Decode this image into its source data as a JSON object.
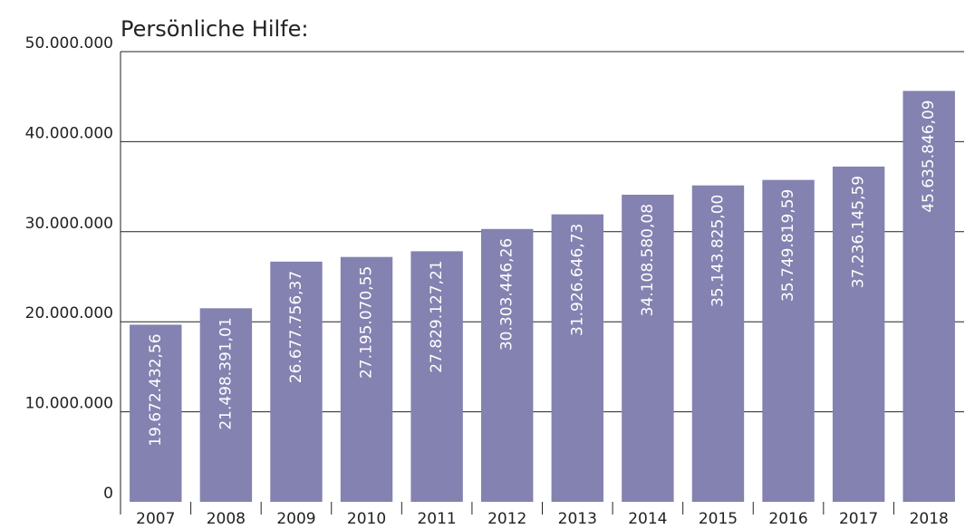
{
  "chart_data": {
    "type": "bar",
    "title": "Persönliche Hilfe:",
    "categories": [
      "2007",
      "2008",
      "2009",
      "2010",
      "2011",
      "2012",
      "2013",
      "2014",
      "2015",
      "2016",
      "2017",
      "2018"
    ],
    "values": [
      19672432.56,
      21498391.01,
      26677756.37,
      27195070.55,
      27829127.21,
      30303446.26,
      31926646.73,
      34108580.08,
      35143825.0,
      35749819.59,
      37236145.59,
      45635846.09
    ],
    "value_labels": [
      "19.672.432,56",
      "21.498.391,01",
      "26.677.756,37",
      "27.195.070,55",
      "27.829.127,21",
      "30.303.446,26",
      "31.926.646,73",
      "34.108.580,08",
      "35.143.825,00",
      "35.749.819,59",
      "37.236.145,59",
      "45.635.846,09"
    ],
    "color": "#8482b0",
    "ylim": [
      0,
      50000000
    ],
    "yticks": [
      0,
      {
        "value": 10000000,
        "label": "10.000.000"
      },
      {
        "value": 20000000,
        "label": "20.000.000"
      },
      {
        "value": 30000000,
        "label": "30.000.000"
      },
      {
        "value": 40000000,
        "label": "40.000.000"
      },
      {
        "value": 50000000,
        "label": "50.000.000"
      }
    ],
    "grid": true
  }
}
